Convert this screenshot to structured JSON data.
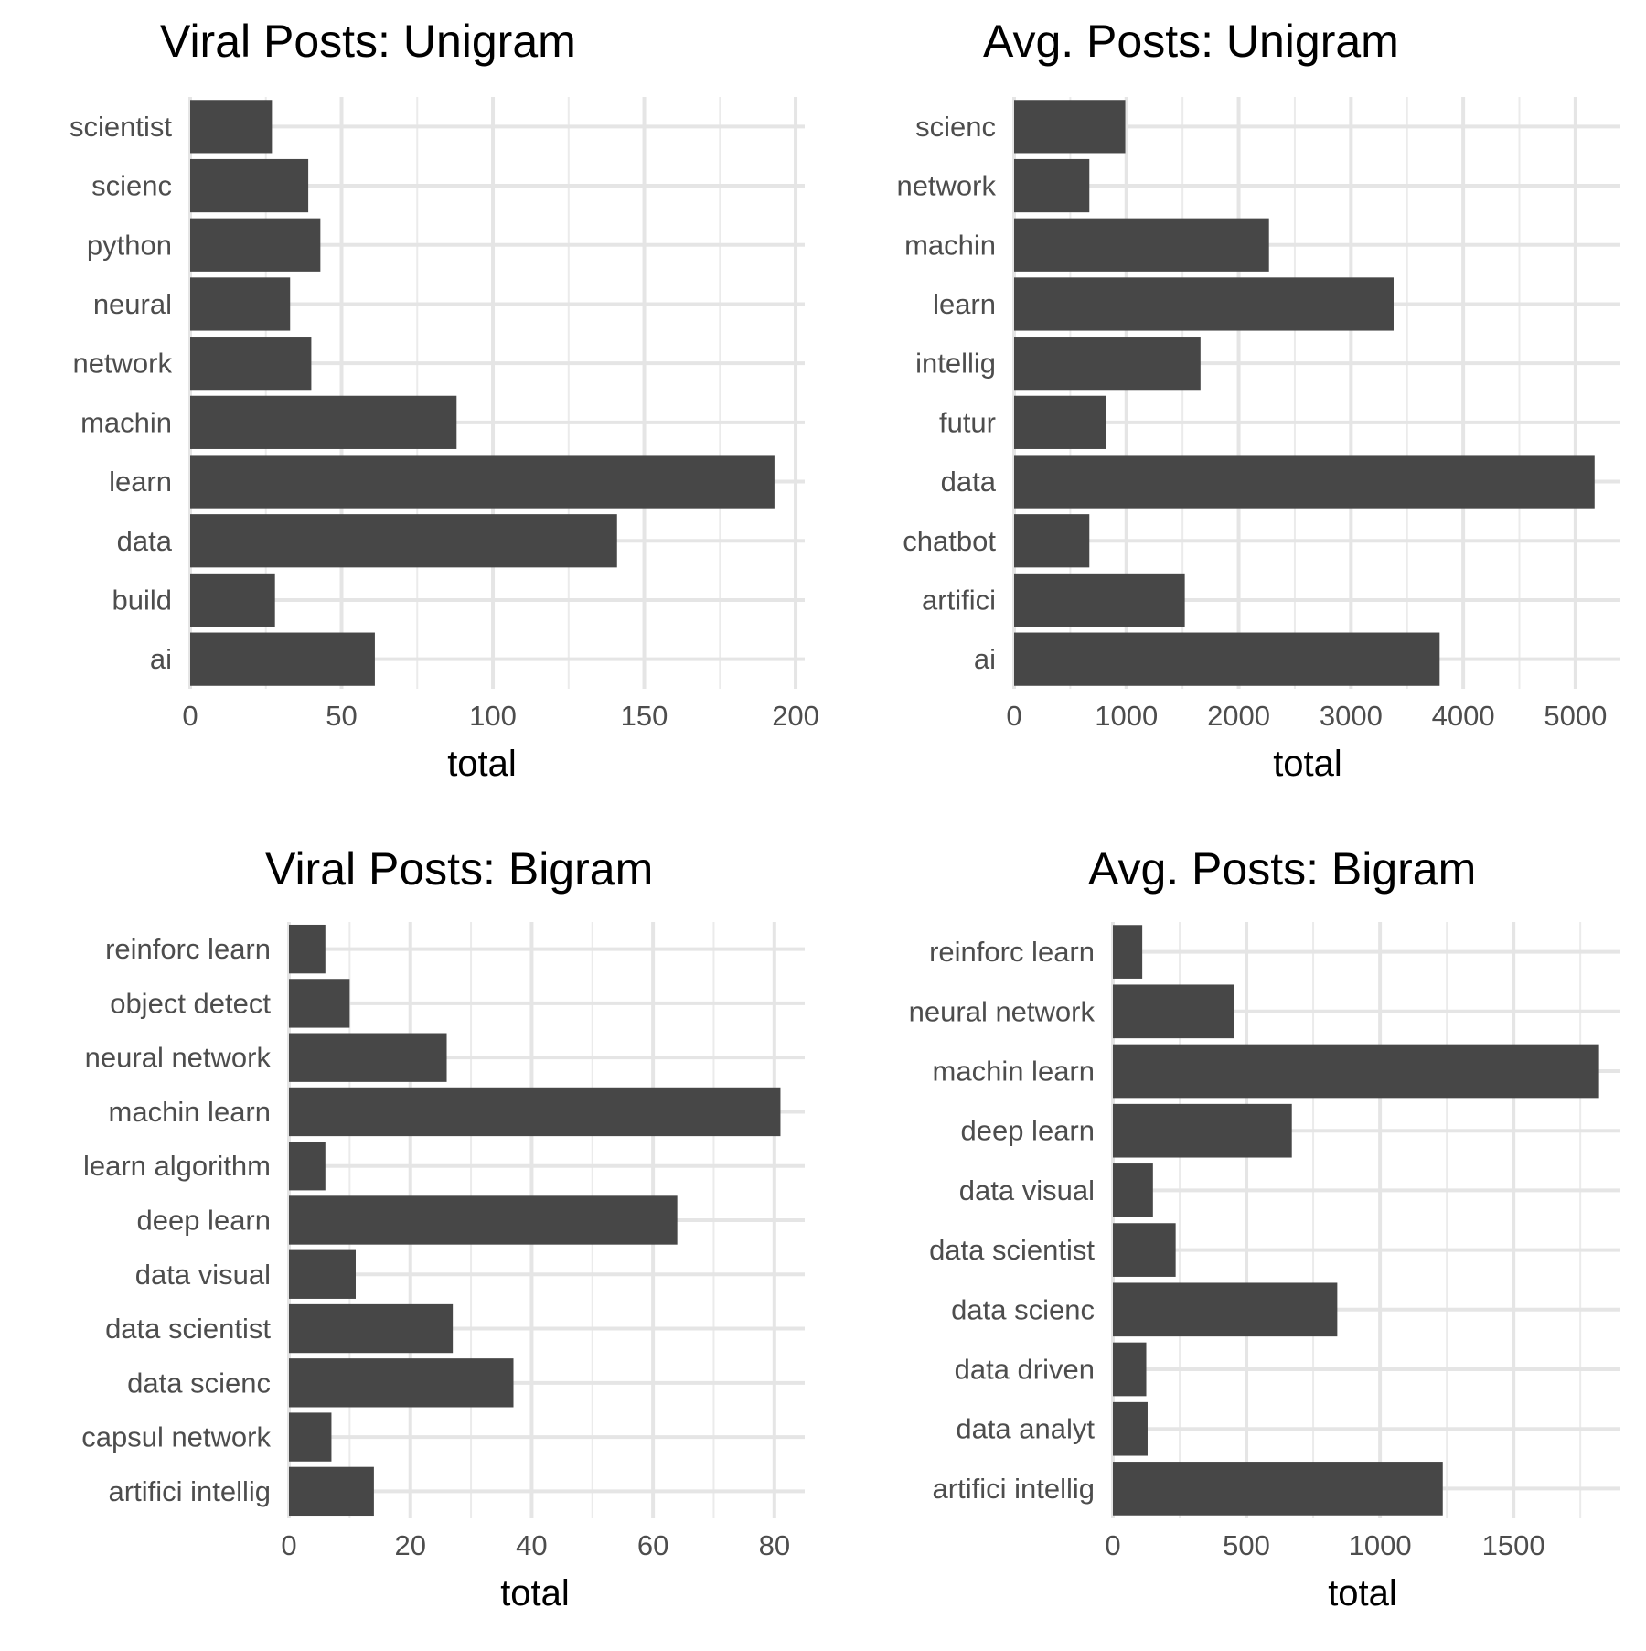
{
  "chart_data": [
    {
      "type": "bar",
      "orientation": "horizontal",
      "title": "Viral Posts: Unigram",
      "xlabel": "total",
      "categories": [
        "scientist",
        "scienc",
        "python",
        "neural",
        "network",
        "machin",
        "learn",
        "data",
        "build",
        "ai"
      ],
      "values": [
        27,
        39,
        43,
        33,
        40,
        88,
        193,
        141,
        28,
        61
      ],
      "xlim": [
        0,
        203
      ],
      "xticks": [
        0,
        50,
        100,
        150,
        200
      ],
      "grid": true
    },
    {
      "type": "bar",
      "orientation": "horizontal",
      "title": "Avg. Posts: Unigram",
      "xlabel": "total",
      "categories": [
        "scienc",
        "network",
        "machin",
        "learn",
        "intellig",
        "futur",
        "data",
        "chatbot",
        "artifici",
        "ai"
      ],
      "values": [
        990,
        670,
        2270,
        3380,
        1660,
        820,
        5170,
        670,
        1520,
        3790
      ],
      "xlim": [
        0,
        5400
      ],
      "xticks": [
        0,
        1000,
        2000,
        3000,
        4000,
        5000
      ],
      "grid": true
    },
    {
      "type": "bar",
      "orientation": "horizontal",
      "title": "Viral Posts: Bigram",
      "xlabel": "total",
      "categories": [
        "reinforc learn",
        "object detect",
        "neural network",
        "machin learn",
        "learn algorithm",
        "deep learn",
        "data visual",
        "data scientist",
        "data scienc",
        "capsul network",
        "artifici intellig"
      ],
      "values": [
        6,
        10,
        26,
        81,
        6,
        64,
        11,
        27,
        37,
        7,
        14
      ],
      "xlim": [
        0,
        85
      ],
      "xticks": [
        0,
        20,
        40,
        60,
        80
      ],
      "grid": true
    },
    {
      "type": "bar",
      "orientation": "horizontal",
      "title": "Avg. Posts: Bigram",
      "xlabel": "total",
      "categories": [
        "reinforc learn",
        "neural network",
        "machin learn",
        "deep learn",
        "data visual",
        "data scientist",
        "data scienc",
        "data driven",
        "data analyt",
        "artifici intellig"
      ],
      "values": [
        110,
        455,
        1820,
        670,
        150,
        235,
        840,
        125,
        130,
        1235
      ],
      "xlim": [
        0,
        1900
      ],
      "xticks": [
        0,
        500,
        1000,
        1500
      ],
      "grid": true
    }
  ],
  "colors": {
    "bar": "#474747",
    "grid": "#e5e5e5",
    "axis_text": "#4d4d4d",
    "title_text": "#000000",
    "background": "#ffffff"
  }
}
